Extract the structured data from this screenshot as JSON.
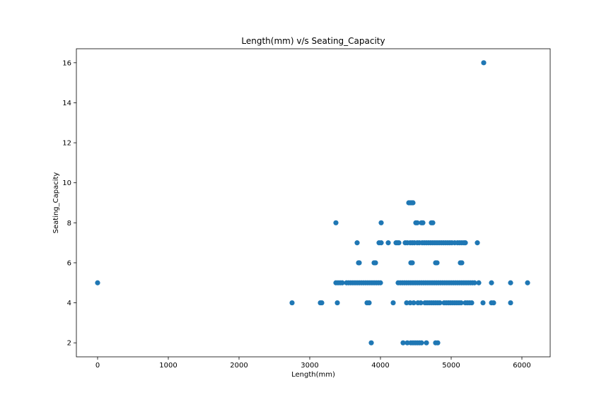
{
  "chart_data": {
    "type": "scatter",
    "title": "Length(mm) v/s Seating_Capacity",
    "xlabel": "Length(mm)",
    "ylabel": "Seating_Capacity",
    "xlim": [
      -300,
      6400
    ],
    "ylim": [
      1.3,
      16.7
    ],
    "xticks": [
      0,
      1000,
      2000,
      3000,
      4000,
      5000,
      6000
    ],
    "yticks": [
      2,
      4,
      6,
      8,
      10,
      12,
      14,
      16
    ],
    "grid": false,
    "marker_color": "#1f77b4",
    "points": [
      [
        0,
        5
      ],
      [
        5460,
        16
      ],
      [
        4400,
        9
      ],
      [
        4420,
        9
      ],
      [
        4440,
        9
      ],
      [
        4460,
        9
      ],
      [
        3370,
        8
      ],
      [
        4010,
        8
      ],
      [
        4500,
        8
      ],
      [
        4520,
        8
      ],
      [
        4580,
        8
      ],
      [
        4600,
        8
      ],
      [
        4720,
        8
      ],
      [
        4740,
        8
      ],
      [
        3670,
        7
      ],
      [
        3980,
        7
      ],
      [
        4010,
        7
      ],
      [
        4110,
        7
      ],
      [
        4220,
        7
      ],
      [
        4240,
        7
      ],
      [
        4260,
        7
      ],
      [
        4350,
        7
      ],
      [
        4380,
        7
      ],
      [
        4420,
        7
      ],
      [
        4450,
        7
      ],
      [
        4480,
        7
      ],
      [
        4520,
        7
      ],
      [
        4550,
        7
      ],
      [
        4590,
        7
      ],
      [
        4620,
        7
      ],
      [
        4650,
        7
      ],
      [
        4680,
        7
      ],
      [
        4710,
        7
      ],
      [
        4740,
        7
      ],
      [
        4770,
        7
      ],
      [
        4800,
        7
      ],
      [
        4830,
        7
      ],
      [
        4860,
        7
      ],
      [
        4890,
        7
      ],
      [
        4920,
        7
      ],
      [
        4950,
        7
      ],
      [
        4980,
        7
      ],
      [
        5010,
        7
      ],
      [
        5050,
        7
      ],
      [
        5090,
        7
      ],
      [
        5120,
        7
      ],
      [
        5150,
        7
      ],
      [
        5180,
        7
      ],
      [
        5200,
        7
      ],
      [
        5370,
        7
      ],
      [
        3690,
        6
      ],
      [
        3700,
        6
      ],
      [
        3910,
        6
      ],
      [
        3930,
        6
      ],
      [
        4430,
        6
      ],
      [
        4450,
        6
      ],
      [
        4780,
        6
      ],
      [
        4800,
        6
      ],
      [
        5130,
        6
      ],
      [
        5150,
        6
      ],
      [
        3370,
        5
      ],
      [
        3400,
        5
      ],
      [
        3430,
        5
      ],
      [
        3460,
        5
      ],
      [
        3520,
        5
      ],
      [
        3550,
        5
      ],
      [
        3580,
        5
      ],
      [
        3610,
        5
      ],
      [
        3640,
        5
      ],
      [
        3670,
        5
      ],
      [
        3700,
        5
      ],
      [
        3730,
        5
      ],
      [
        3760,
        5
      ],
      [
        3790,
        5
      ],
      [
        3820,
        5
      ],
      [
        3850,
        5
      ],
      [
        3880,
        5
      ],
      [
        3910,
        5
      ],
      [
        3940,
        5
      ],
      [
        3970,
        5
      ],
      [
        4000,
        5
      ],
      [
        4250,
        5
      ],
      [
        4280,
        5
      ],
      [
        4310,
        5
      ],
      [
        4340,
        5
      ],
      [
        4370,
        5
      ],
      [
        4400,
        5
      ],
      [
        4430,
        5
      ],
      [
        4460,
        5
      ],
      [
        4490,
        5
      ],
      [
        4520,
        5
      ],
      [
        4550,
        5
      ],
      [
        4580,
        5
      ],
      [
        4610,
        5
      ],
      [
        4640,
        5
      ],
      [
        4670,
        5
      ],
      [
        4700,
        5
      ],
      [
        4730,
        5
      ],
      [
        4760,
        5
      ],
      [
        4790,
        5
      ],
      [
        4820,
        5
      ],
      [
        4850,
        5
      ],
      [
        4880,
        5
      ],
      [
        4910,
        5
      ],
      [
        4940,
        5
      ],
      [
        4970,
        5
      ],
      [
        5000,
        5
      ],
      [
        5030,
        5
      ],
      [
        5060,
        5
      ],
      [
        5090,
        5
      ],
      [
        5120,
        5
      ],
      [
        5150,
        5
      ],
      [
        5180,
        5
      ],
      [
        5210,
        5
      ],
      [
        5240,
        5
      ],
      [
        5270,
        5
      ],
      [
        5300,
        5
      ],
      [
        5330,
        5
      ],
      [
        5390,
        5
      ],
      [
        5570,
        5
      ],
      [
        5840,
        5
      ],
      [
        6080,
        5
      ],
      [
        2750,
        4
      ],
      [
        3150,
        4
      ],
      [
        3170,
        4
      ],
      [
        3390,
        4
      ],
      [
        3810,
        4
      ],
      [
        3840,
        4
      ],
      [
        4180,
        4
      ],
      [
        4370,
        4
      ],
      [
        4420,
        4
      ],
      [
        4470,
        4
      ],
      [
        4530,
        4
      ],
      [
        4570,
        4
      ],
      [
        4630,
        4
      ],
      [
        4660,
        4
      ],
      [
        4690,
        4
      ],
      [
        4720,
        4
      ],
      [
        4750,
        4
      ],
      [
        4780,
        4
      ],
      [
        4810,
        4
      ],
      [
        4840,
        4
      ],
      [
        4900,
        4
      ],
      [
        4930,
        4
      ],
      [
        4960,
        4
      ],
      [
        4990,
        4
      ],
      [
        5020,
        4
      ],
      [
        5050,
        4
      ],
      [
        5080,
        4
      ],
      [
        5110,
        4
      ],
      [
        5140,
        4
      ],
      [
        5200,
        4
      ],
      [
        5230,
        4
      ],
      [
        5260,
        4
      ],
      [
        5290,
        4
      ],
      [
        5450,
        4
      ],
      [
        5570,
        4
      ],
      [
        5600,
        4
      ],
      [
        5840,
        4
      ],
      [
        3870,
        2
      ],
      [
        4320,
        2
      ],
      [
        4380,
        2
      ],
      [
        4430,
        2
      ],
      [
        4460,
        2
      ],
      [
        4490,
        2
      ],
      [
        4520,
        2
      ],
      [
        4550,
        2
      ],
      [
        4580,
        2
      ],
      [
        4650,
        2
      ],
      [
        4780,
        2
      ],
      [
        4810,
        2
      ]
    ]
  }
}
